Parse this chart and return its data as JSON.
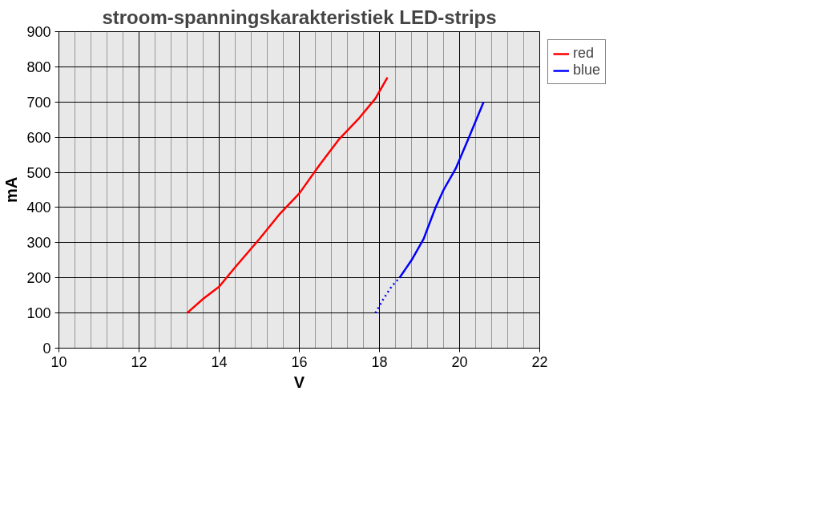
{
  "chart_data": {
    "type": "line",
    "title": "stroom-spanningskarakteristiek LED-strips",
    "xlabel": "V",
    "ylabel": "mA",
    "xlim": [
      10,
      22
    ],
    "xticks": [
      10,
      12,
      14,
      16,
      18,
      20,
      22
    ],
    "ylim": [
      0,
      900
    ],
    "yticks": [
      0,
      100,
      200,
      300,
      400,
      500,
      600,
      700,
      800,
      900
    ],
    "grid": true,
    "legend": "top right",
    "marker": "none",
    "series": [
      {
        "name": "red",
        "color": "#ff0000",
        "line_style": "solid",
        "x": [
          13.2,
          13.6,
          14,
          14.4,
          15,
          15.5,
          16,
          16.5,
          17,
          17.5,
          17.9,
          18,
          18.2
        ],
        "values": [
          100,
          140,
          175,
          230,
          310,
          380,
          440,
          520,
          595,
          655,
          710,
          730,
          770
        ]
      },
      {
        "color": "#0000ff",
        "line_style": "dotted",
        "x": [
          17.9,
          18.1,
          18.3,
          18.5
        ],
        "values": [
          100,
          140,
          175,
          200
        ]
      },
      {
        "name": "blue",
        "color": "#0000ff",
        "line_style": "solid",
        "x": [
          18.5,
          18.8,
          19.1,
          19.2,
          19.4,
          19.6,
          19.9,
          20.2,
          20.6
        ],
        "values": [
          200,
          250,
          310,
          340,
          400,
          450,
          510,
          590,
          700
        ]
      }
    ]
  }
}
